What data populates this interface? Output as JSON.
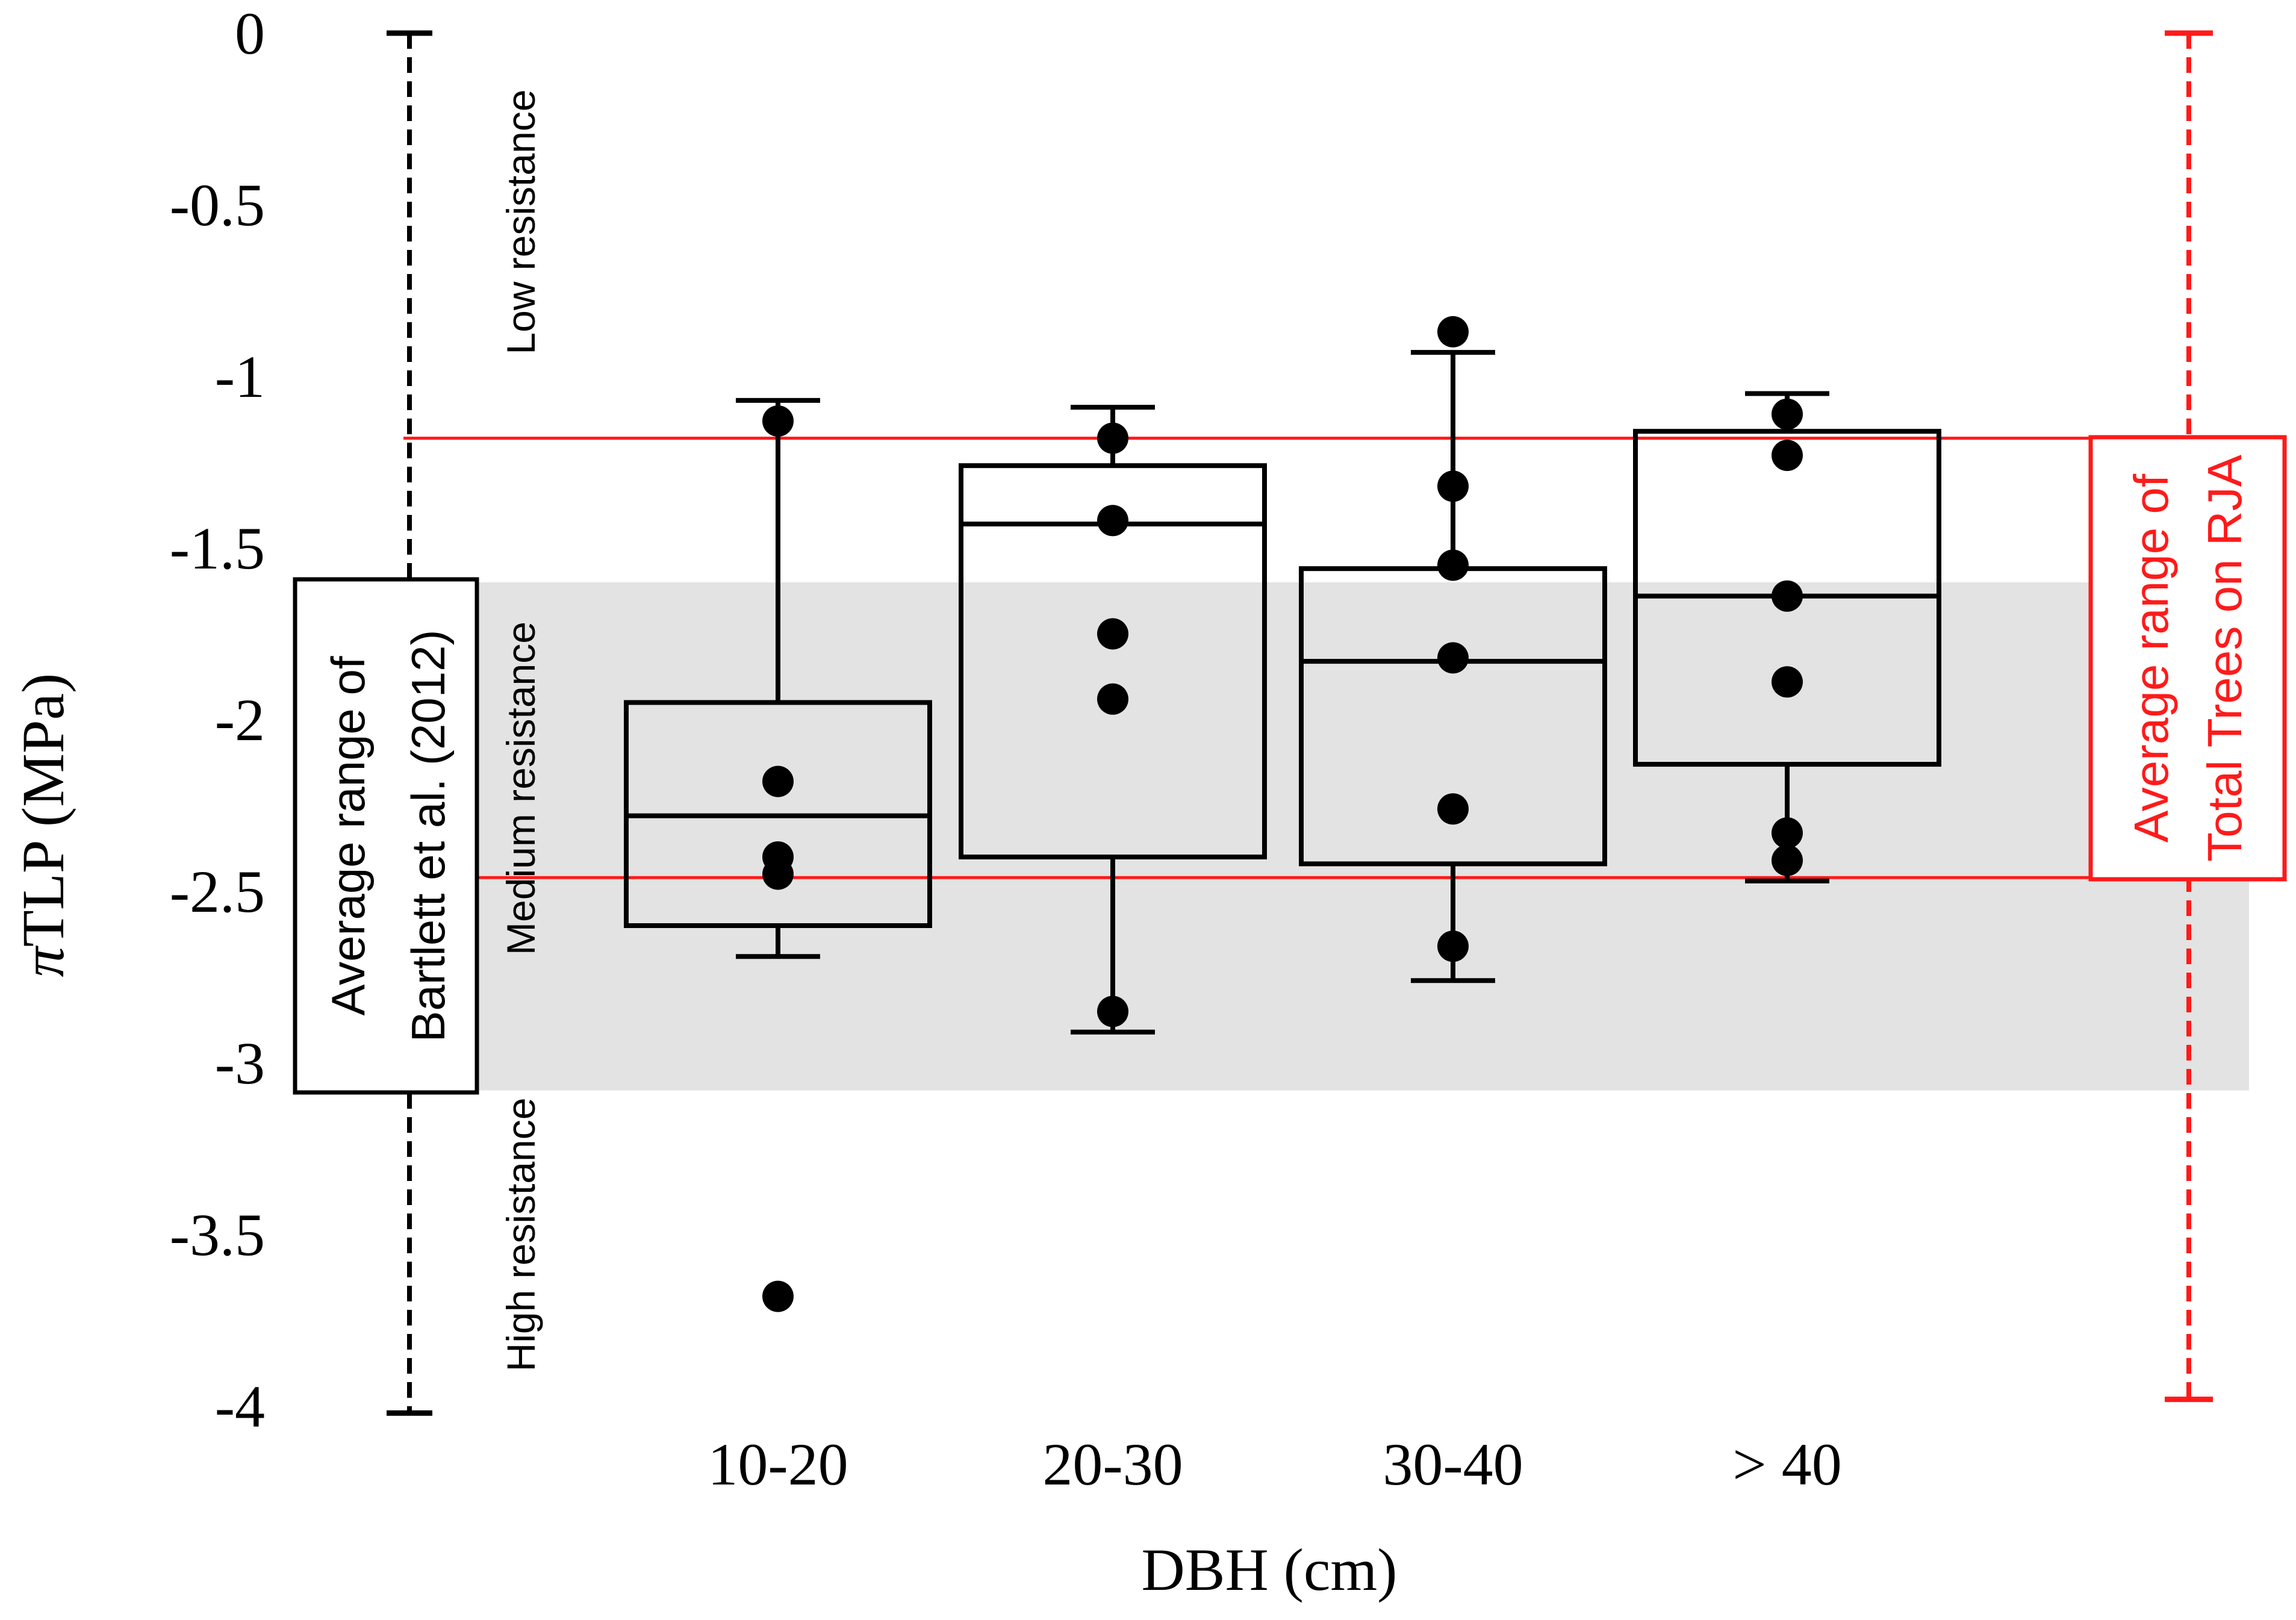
{
  "chart_data": {
    "type": "box",
    "xlabel": "DBH (cm)",
    "ylabel_symbol": "π",
    "ylabel_text": "TLP (MPa)",
    "ylim": [
      -4,
      0
    ],
    "yticks": [
      {
        "value": 0,
        "label": "0"
      },
      {
        "value": -0.5,
        "label": "-0.5"
      },
      {
        "value": -1,
        "label": "-1"
      },
      {
        "value": -1.5,
        "label": "-1.5"
      },
      {
        "value": -2,
        "label": "-2"
      },
      {
        "value": -2.5,
        "label": "-2.5"
      },
      {
        "value": -3,
        "label": "-3"
      },
      {
        "value": -3.5,
        "label": "-3.5"
      },
      {
        "value": -4,
        "label": "-4"
      }
    ],
    "categories": [
      "10-20",
      "20-30",
      "30-40",
      "> 40"
    ],
    "boxes": [
      {
        "category": "10-20",
        "whisker_high": -1.07,
        "q3": -1.95,
        "median": -2.28,
        "q1": -2.6,
        "whisker_low": -2.69,
        "points": [
          -1.13,
          -2.18,
          -2.4,
          -2.45,
          -3.68
        ]
      },
      {
        "category": "20-30",
        "whisker_high": -1.09,
        "q3": -1.26,
        "median": -1.43,
        "q1": -2.4,
        "whisker_low": -2.91,
        "points": [
          -1.18,
          -1.42,
          -1.75,
          -1.94,
          -2.85
        ]
      },
      {
        "category": "30-40",
        "whisker_high": -0.93,
        "q3": -1.56,
        "median": -1.83,
        "q1": -2.42,
        "whisker_low": -2.76,
        "points": [
          -0.87,
          -1.32,
          -1.55,
          -1.82,
          -2.26,
          -2.66
        ]
      },
      {
        "category": "> 40",
        "whisker_high": -1.05,
        "q3": -1.16,
        "median": -1.64,
        "q1": -2.13,
        "whisker_low": -2.47,
        "points": [
          -1.11,
          -1.23,
          -1.64,
          -1.89,
          -2.33,
          -2.41
        ]
      }
    ],
    "resistance_labels": [
      {
        "text": "Low resistance",
        "y_center": -0.55
      },
      {
        "text": "Medium resistance",
        "y_center": -2.2
      },
      {
        "text": "High resistance",
        "y_center": -3.5
      }
    ],
    "bartlett_range": {
      "y_top": -1.6,
      "y_bottom": -3.08,
      "axis_top": 0,
      "axis_bottom": -4.02,
      "band_color": "#e3e3e3",
      "label_line1": "Average range of",
      "label_line2": "Bartlett et al. (2012)"
    },
    "rja_range": {
      "y_top": -1.18,
      "y_bottom": -2.46,
      "axis_top": 0,
      "axis_bottom": -3.98,
      "color": "#ff1a1a",
      "label_line1": "Average range of",
      "label_line2": "Total Trees on RJA"
    }
  }
}
